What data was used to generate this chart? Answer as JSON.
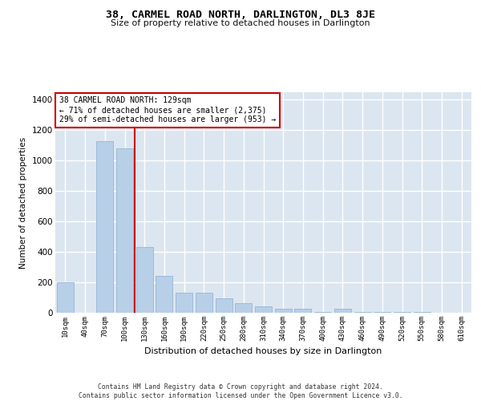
{
  "title": "38, CARMEL ROAD NORTH, DARLINGTON, DL3 8JE",
  "subtitle": "Size of property relative to detached houses in Darlington",
  "xlabel": "Distribution of detached houses by size in Darlington",
  "ylabel": "Number of detached properties",
  "categories": [
    "10sqm",
    "40sqm",
    "70sqm",
    "100sqm",
    "130sqm",
    "160sqm",
    "190sqm",
    "220sqm",
    "250sqm",
    "280sqm",
    "310sqm",
    "340sqm",
    "370sqm",
    "400sqm",
    "430sqm",
    "460sqm",
    "490sqm",
    "520sqm",
    "550sqm",
    "580sqm",
    "610sqm"
  ],
  "values": [
    200,
    2,
    1130,
    1080,
    430,
    240,
    130,
    130,
    95,
    65,
    40,
    28,
    25,
    5,
    28,
    5,
    5,
    3,
    3,
    2,
    2
  ],
  "bar_color": "#b8cfe8",
  "bar_edge_color": "#8aafd0",
  "red_line_index": 4,
  "annotation_text": "38 CARMEL ROAD NORTH: 129sqm\n← 71% of detached houses are smaller (2,375)\n29% of semi-detached houses are larger (953) →",
  "annotation_box_color": "#ffffff",
  "annotation_border_color": "#cc0000",
  "bg_color": "#dce6f0",
  "grid_color": "#ffffff",
  "footer_text": "Contains HM Land Registry data © Crown copyright and database right 2024.\nContains public sector information licensed under the Open Government Licence v3.0.",
  "ylim": [
    0,
    1450
  ],
  "yticks": [
    0,
    200,
    400,
    600,
    800,
    1000,
    1200,
    1400
  ],
  "title_fontsize": 9.5,
  "subtitle_fontsize": 8
}
